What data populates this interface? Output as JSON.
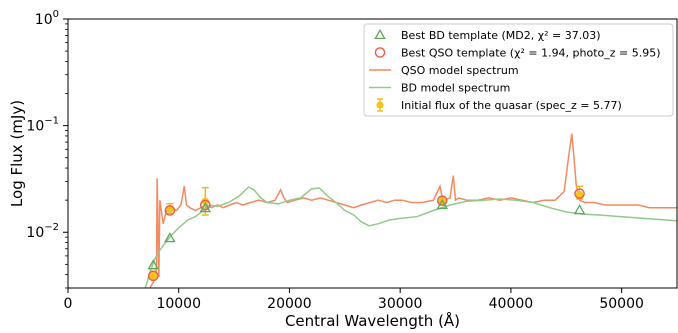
{
  "chart_data": {
    "type": "line",
    "title": "",
    "xlabel": "Central Wavelength (Å)",
    "ylabel": "Log Flux (mJy)",
    "xlim": [
      0,
      55000
    ],
    "ylim": [
      0.003,
      1
    ],
    "yscale": "log",
    "x_ticks": [
      0,
      10000,
      20000,
      30000,
      40000,
      50000
    ],
    "x_tick_labels": [
      "0",
      "10000",
      "20000",
      "30000",
      "40000",
      "50000"
    ],
    "y_ticks": [
      0.01,
      0.1,
      1
    ],
    "y_tick_base": "10",
    "y_tick_exponents": [
      "−2",
      "−1",
      "0"
    ],
    "grid": false,
    "legend_position": "top-right",
    "colors": {
      "bd": "#5aa85a",
      "qso": "#ef5b4c",
      "qso_line": "#f28a62",
      "bd_line": "#93c98a",
      "flux": "#f5c518",
      "flux_err": "#f2b705"
    },
    "series": [
      {
        "name": "Best BD template (MD2, χ² = 37.03)",
        "kind": "scatter",
        "marker": "triangle",
        "x": [
          7700,
          9200,
          12400,
          33800,
          46200
        ],
        "y": [
          0.0049,
          0.0088,
          0.0168,
          0.018,
          0.0161
        ]
      },
      {
        "name": "Best QSO template (χ² = 1.94, photo_z = 5.95)",
        "kind": "scatter",
        "marker": "circle",
        "x": [
          7700,
          9200,
          12400,
          33800,
          46200
        ],
        "y": [
          0.0039,
          0.016,
          0.018,
          0.0198,
          0.023
        ]
      },
      {
        "name": "QSO model spectrum",
        "kind": "line",
        "x": [
          7400,
          7700,
          7900,
          8000,
          8050,
          8100,
          8200,
          8300,
          8600,
          8900,
          9300,
          9800,
          10200,
          10500,
          10700,
          11000,
          11500,
          12000,
          12500,
          13000,
          13500,
          14000,
          14600,
          15200,
          15800,
          16500,
          17200,
          18000,
          18700,
          19200,
          19500,
          19800,
          20500,
          21300,
          22000,
          22800,
          23500,
          24200,
          25000,
          25800,
          26500,
          27300,
          28000,
          28800,
          29500,
          30200,
          31000,
          32000,
          33000,
          33600,
          33800,
          34000,
          34500,
          34800,
          35000,
          35300,
          36000,
          37000,
          38000,
          39000,
          40000,
          41000,
          42000,
          43000,
          44000,
          44800,
          45200,
          45500,
          45700,
          45900,
          46200,
          46700,
          47500,
          48500,
          49500,
          50500,
          51500,
          52500,
          53500,
          55000
        ],
        "y": [
          0.003,
          0.0034,
          0.0038,
          0.005,
          0.032,
          0.018,
          0.0038,
          0.02,
          0.012,
          0.016,
          0.017,
          0.016,
          0.018,
          0.027,
          0.018,
          0.017,
          0.016,
          0.017,
          0.018,
          0.017,
          0.018,
          0.017,
          0.018,
          0.019,
          0.018,
          0.019,
          0.02,
          0.019,
          0.02,
          0.025,
          0.021,
          0.019,
          0.02,
          0.021,
          0.02,
          0.021,
          0.02,
          0.019,
          0.018,
          0.017,
          0.018,
          0.019,
          0.02,
          0.019,
          0.02,
          0.02,
          0.019,
          0.019,
          0.02,
          0.027,
          0.021,
          0.02,
          0.021,
          0.034,
          0.02,
          0.021,
          0.02,
          0.02,
          0.021,
          0.02,
          0.021,
          0.02,
          0.019,
          0.02,
          0.02,
          0.024,
          0.05,
          0.084,
          0.05,
          0.028,
          0.02,
          0.019,
          0.019,
          0.018,
          0.018,
          0.018,
          0.018,
          0.017,
          0.017,
          0.017
        ]
      },
      {
        "name": "BD model spectrum",
        "kind": "line",
        "x": [
          6400,
          6900,
          7400,
          7800,
          8300,
          8800,
          9300,
          10000,
          10800,
          11500,
          12200,
          12800,
          13500,
          14500,
          15500,
          16300,
          16800,
          17400,
          18000,
          19000,
          20000,
          21000,
          22000,
          22700,
          23400,
          24200,
          25000,
          25800,
          26500,
          27200,
          28000,
          29000,
          30000,
          31500,
          33000,
          34500,
          36000,
          37500,
          39000,
          40500,
          42000,
          43500,
          45000,
          46500,
          48000,
          50000,
          52000,
          55000
        ],
        "y": [
          0.002,
          0.0028,
          0.0042,
          0.0055,
          0.0068,
          0.008,
          0.0093,
          0.011,
          0.013,
          0.014,
          0.016,
          0.018,
          0.0175,
          0.019,
          0.022,
          0.0265,
          0.025,
          0.021,
          0.019,
          0.0185,
          0.02,
          0.021,
          0.0255,
          0.026,
          0.022,
          0.019,
          0.016,
          0.0145,
          0.0125,
          0.0115,
          0.012,
          0.013,
          0.0135,
          0.014,
          0.016,
          0.018,
          0.0195,
          0.02,
          0.0205,
          0.02,
          0.019,
          0.017,
          0.0155,
          0.0148,
          0.0145,
          0.014,
          0.0135,
          0.0128
        ]
      },
      {
        "name": "Initial flux of the quasar (spec_z = 5.77)",
        "kind": "errorbar",
        "x": [
          7700,
          9200,
          12400,
          33800,
          46200
        ],
        "y": [
          0.0039,
          0.0165,
          0.0195,
          0.0195,
          0.0225
        ],
        "yerr_low": [
          0.0036,
          0.015,
          0.0145,
          0.018,
          0.0205
        ],
        "yerr_high": [
          0.0043,
          0.0185,
          0.0262,
          0.0212,
          0.027
        ]
      }
    ]
  }
}
